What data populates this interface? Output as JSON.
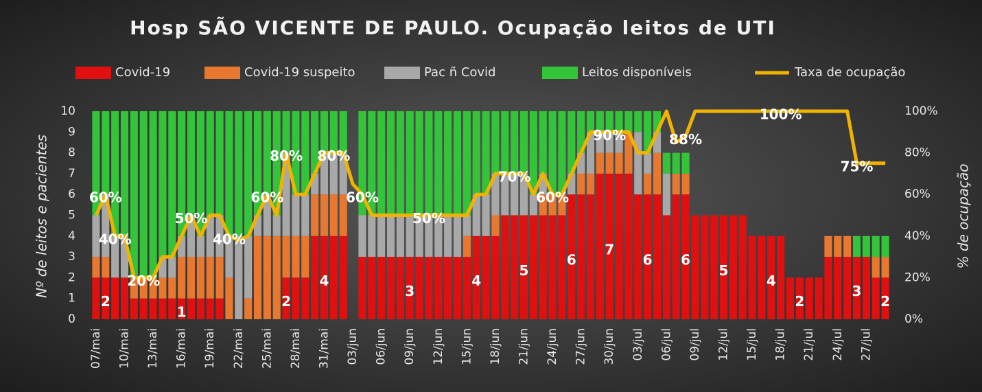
{
  "chart_data": {
    "type": "stacked_bar_line",
    "title": "Hosp SÃO VICENTE DE PAULO. Ocupação leitos de UTI",
    "y_label": "Nº de leitos e pacientes",
    "y2_label": "% de ocupação",
    "categories": [
      "07/mai",
      null,
      null,
      "10/mai",
      null,
      null,
      "13/mai",
      null,
      null,
      "16/mai",
      null,
      null,
      "19/mai",
      null,
      null,
      "22/mai",
      null,
      null,
      "25/mai",
      null,
      null,
      "28/mai",
      null,
      null,
      "31/mai",
      null,
      null,
      "03/jun",
      null,
      null,
      "06/jun",
      null,
      null,
      "09/jun",
      null,
      null,
      "12/jun",
      null,
      null,
      "15/jun",
      null,
      null,
      "18/jun",
      null,
      null,
      "21/jun",
      null,
      null,
      "24/jun",
      null,
      null,
      "27/jun",
      null,
      null,
      "30/jun",
      null,
      null,
      "03/jul",
      null,
      null,
      "06/jul",
      null,
      null,
      "09/jul",
      null,
      null,
      "12/jul",
      null,
      null,
      "15/jul",
      null,
      null,
      "18/jul",
      null,
      null,
      "21/jul",
      null,
      null,
      "24/jul",
      null,
      null,
      "27/jul",
      null,
      null
    ],
    "series": [
      {
        "name": "Covid-19",
        "color": "#e01010",
        "values": [
          2,
          2,
          2,
          2,
          1,
          1,
          1,
          1,
          1,
          1,
          1,
          1,
          1,
          1,
          0,
          0,
          0,
          0,
          0,
          0,
          2,
          2,
          2,
          4,
          4,
          4,
          4,
          null,
          3,
          3,
          3,
          3,
          3,
          3,
          3,
          3,
          3,
          3,
          3,
          3,
          4,
          4,
          4,
          5,
          5,
          5,
          5,
          5,
          5,
          5,
          6,
          6,
          6,
          7,
          7,
          7,
          7,
          6,
          6,
          6,
          5,
          6,
          6,
          5,
          5,
          5,
          5,
          5,
          5,
          4,
          4,
          4,
          4,
          2,
          2,
          2,
          2,
          3,
          3,
          3,
          3,
          3,
          2,
          2
        ],
        "value_labels": [
          null,
          "2",
          null,
          null,
          null,
          null,
          null,
          null,
          null,
          "1",
          null,
          null,
          null,
          null,
          null,
          null,
          null,
          null,
          null,
          null,
          "2",
          null,
          null,
          null,
          "4",
          null,
          null,
          null,
          null,
          null,
          null,
          null,
          null,
          "3",
          null,
          null,
          null,
          null,
          null,
          null,
          "4",
          null,
          null,
          null,
          null,
          "5",
          null,
          null,
          null,
          null,
          "6",
          null,
          null,
          null,
          "7",
          null,
          null,
          null,
          "6",
          null,
          null,
          null,
          "6",
          null,
          null,
          null,
          "5",
          null,
          null,
          null,
          null,
          "4",
          null,
          null,
          "2",
          null,
          null,
          null,
          null,
          null,
          "3",
          null,
          null,
          "2"
        ]
      },
      {
        "name": "Covid-19 suspeito",
        "color": "#e87830",
        "values": [
          1,
          1,
          0,
          0,
          1,
          1,
          1,
          1,
          1,
          2,
          2,
          2,
          2,
          2,
          2,
          0,
          1,
          4,
          4,
          4,
          2,
          2,
          2,
          2,
          2,
          2,
          2,
          null,
          0,
          0,
          0,
          0,
          0,
          0,
          0,
          0,
          0,
          0,
          0,
          1,
          0,
          0,
          1,
          0,
          0,
          0,
          0,
          1,
          1,
          1,
          0,
          1,
          1,
          1,
          1,
          1,
          2,
          0,
          1,
          2,
          0,
          1,
          1,
          0,
          0,
          0,
          0,
          0,
          0,
          0,
          0,
          0,
          0,
          0,
          0,
          0,
          0,
          1,
          1,
          1,
          0,
          0,
          1,
          1
        ]
      },
      {
        "name": "Pac ñ Covid",
        "color": "#a8a8a8",
        "values": [
          2,
          3,
          2,
          2,
          0,
          0,
          0,
          1,
          1,
          1,
          2,
          1,
          2,
          2,
          2,
          4,
          3,
          1,
          2,
          1,
          4,
          2,
          2,
          1,
          2,
          2,
          2,
          null,
          2,
          2,
          2,
          2,
          2,
          2,
          2,
          2,
          2,
          2,
          2,
          1,
          2,
          2,
          2,
          2,
          2,
          2,
          1,
          1,
          0,
          0,
          1,
          1,
          2,
          1,
          1,
          1,
          0,
          3,
          1,
          1,
          2,
          0,
          0,
          0,
          0,
          0,
          0,
          0,
          0,
          0,
          0,
          0,
          0,
          0,
          0,
          0,
          0,
          0,
          0,
          0,
          0,
          0,
          0,
          0
        ]
      },
      {
        "name": "Leitos disponíveis",
        "color": "#33c43a",
        "values": [
          5,
          4,
          6,
          6,
          8,
          8,
          8,
          7,
          7,
          6,
          5,
          6,
          5,
          5,
          6,
          6,
          6,
          5,
          4,
          5,
          2,
          4,
          4,
          3,
          2,
          2,
          2,
          null,
          5,
          5,
          5,
          5,
          5,
          5,
          5,
          5,
          5,
          5,
          5,
          5,
          4,
          4,
          3,
          3,
          3,
          3,
          4,
          3,
          4,
          4,
          3,
          2,
          1,
          1,
          1,
          1,
          1,
          1,
          2,
          1,
          1,
          1,
          1,
          0,
          0,
          0,
          0,
          0,
          0,
          0,
          0,
          0,
          0,
          0,
          0,
          0,
          0,
          0,
          0,
          0,
          1,
          1,
          1,
          1
        ]
      },
      {
        "name": "Taxa de ocupação",
        "color": "#f0b400",
        "axis": "y2",
        "values": [
          50,
          60,
          40,
          40,
          20,
          20,
          20,
          30,
          30,
          40,
          50,
          40,
          50,
          50,
          40,
          38,
          40,
          50,
          60,
          50,
          80,
          60,
          60,
          70,
          80,
          80,
          80,
          65,
          60,
          50,
          50,
          50,
          50,
          50,
          50,
          50,
          50,
          50,
          50,
          50,
          60,
          60,
          70,
          70,
          70,
          70,
          60,
          70,
          60,
          60,
          70,
          80,
          90,
          90,
          90,
          90,
          90,
          80,
          80,
          90,
          100,
          85,
          88,
          100,
          100,
          100,
          100,
          100,
          100,
          100,
          100,
          100,
          100,
          100,
          100,
          100,
          100,
          100,
          100,
          100,
          75,
          75,
          75,
          75
        ],
        "value_labels": [
          null,
          "60%",
          "40%",
          null,
          null,
          "20%",
          null,
          null,
          null,
          null,
          "50%",
          null,
          null,
          null,
          "40%",
          null,
          null,
          null,
          "60%",
          null,
          "80%",
          null,
          null,
          null,
          null,
          "80%",
          null,
          null,
          "60%",
          null,
          null,
          null,
          null,
          null,
          null,
          "50%",
          null,
          null,
          null,
          null,
          null,
          null,
          null,
          null,
          "70%",
          null,
          null,
          null,
          "60%",
          null,
          null,
          null,
          null,
          null,
          "90%",
          null,
          null,
          null,
          null,
          null,
          null,
          null,
          "88%",
          null,
          null,
          null,
          null,
          null,
          null,
          null,
          null,
          null,
          "100%",
          null,
          null,
          null,
          null,
          null,
          null,
          null,
          "75%",
          null,
          null,
          null
        ]
      }
    ],
    "ylim": [
      0,
      10
    ],
    "yticks": [
      0,
      1,
      2,
      3,
      4,
      5,
      6,
      7,
      8,
      9,
      10
    ],
    "y2lim": [
      0,
      100
    ],
    "y2ticks": [
      {
        "value": 0,
        "label": "0%"
      },
      {
        "value": 20,
        "label": "20%"
      },
      {
        "value": 40,
        "label": "40%"
      },
      {
        "value": 60,
        "label": "60%"
      },
      {
        "value": 80,
        "label": "80%"
      },
      {
        "value": 100,
        "label": "100%"
      }
    ],
    "legend": "top"
  }
}
